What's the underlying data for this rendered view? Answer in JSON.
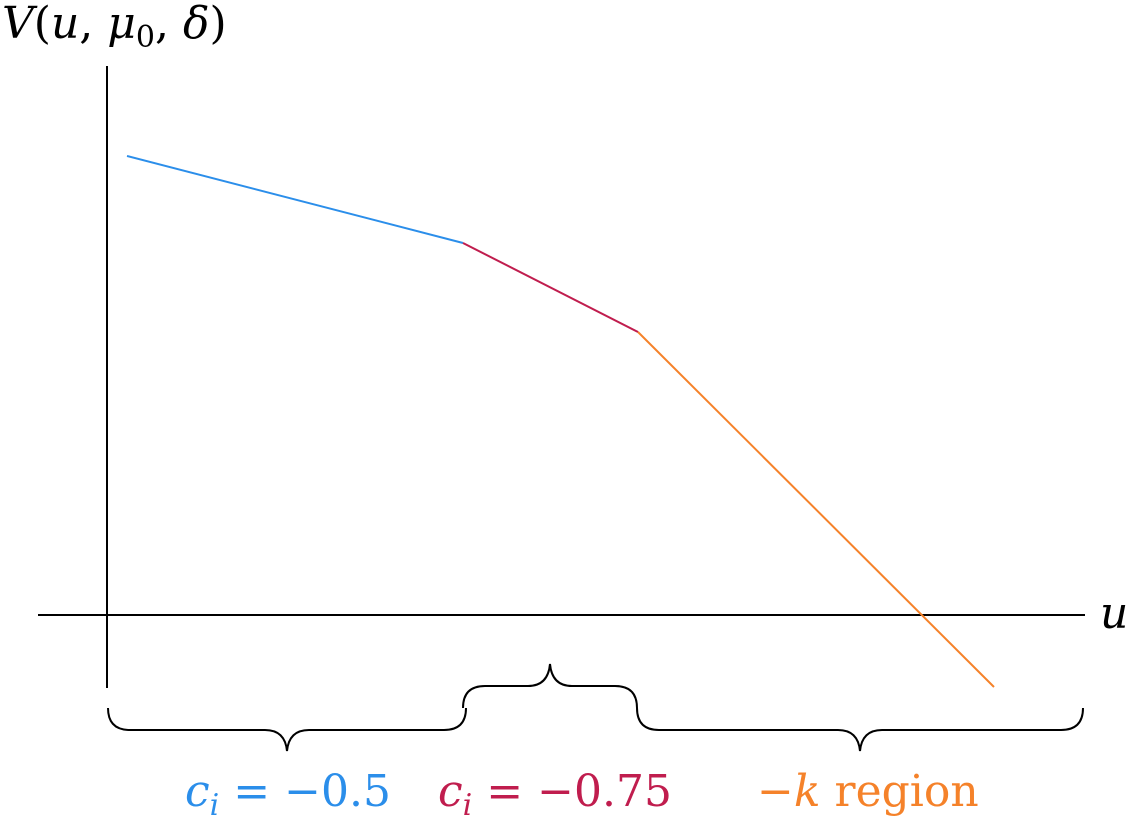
{
  "axes": {
    "y_label": {
      "fn": "V",
      "open": "(",
      "arg1": "u",
      "sep1": ", ",
      "arg2_base": "μ",
      "arg2_sub": "0",
      "sep2": ", ",
      "arg3": "δ",
      "close": ")"
    },
    "x_label": "u"
  },
  "segments": [
    {
      "color": "#2b8eea"
    },
    {
      "color": "#c01d4e"
    },
    {
      "color": "#f5822a"
    }
  ],
  "regions": [
    {
      "var": "c",
      "sub": "i",
      "eq": " = −0.5",
      "color": "#2b8eea"
    },
    {
      "var": "c",
      "sub": "i",
      "eq": " = −0.75",
      "color": "#c01d4e"
    },
    {
      "pre": "−",
      "var": "k",
      "post": " region",
      "color": "#f5822a"
    }
  ]
}
